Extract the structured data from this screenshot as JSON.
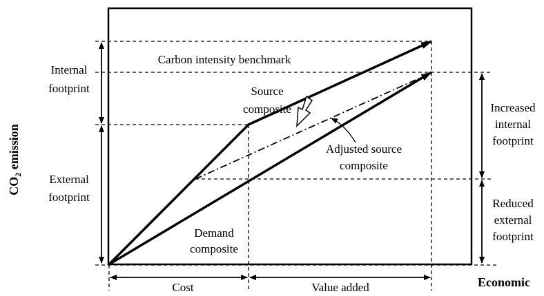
{
  "labels": {
    "carbon_benchmark": "Carbon intensity benchmark",
    "source_composite": [
      "Source",
      "composite"
    ],
    "adjusted_source_composite": [
      "Adjusted source",
      "composite"
    ],
    "demand_composite": [
      "Demand",
      "composite"
    ],
    "internal_footprint": [
      "Internal",
      "footprint"
    ],
    "external_footprint": [
      "External",
      "footprint"
    ],
    "increased_internal_footprint": [
      "Increased",
      "internal",
      "footprint"
    ],
    "reduced_external_footprint": [
      "Reduced",
      "external",
      "footprint"
    ],
    "y_axis": {
      "main": "CO",
      "sub": "2",
      "rest": " emission"
    },
    "x_axis": "Economic",
    "cost": "Cost",
    "value_added": "Value added"
  }
}
